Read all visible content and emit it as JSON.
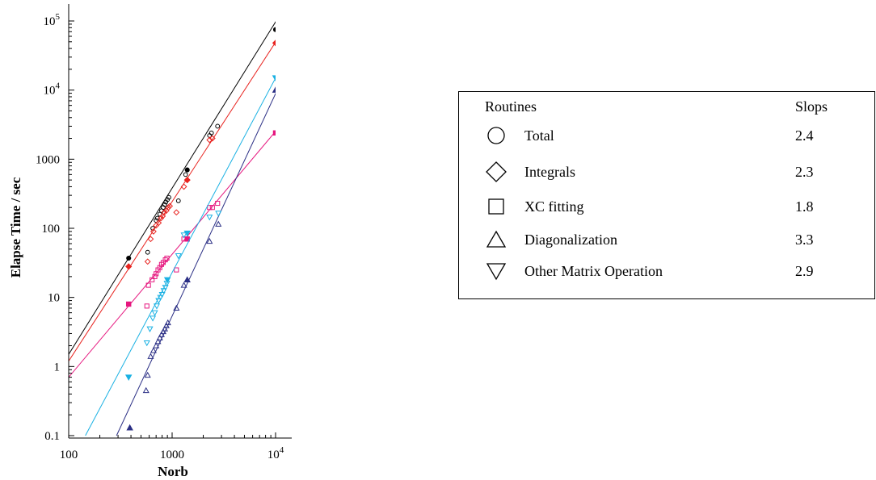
{
  "chart_data": {
    "type": "scatter",
    "xlabel": "Norb",
    "ylabel": "Elapse Time / sec",
    "xscale": "log",
    "yscale": "log",
    "xlim": [
      100,
      14000
    ],
    "ylim": [
      0.1,
      200000
    ],
    "x_ticks": [
      {
        "value": 100,
        "label": "100",
        "sup": ""
      },
      {
        "value": 1000,
        "label": "1000",
        "sup": ""
      },
      {
        "value": 10000,
        "label": "10",
        "sup": "4"
      }
    ],
    "y_ticks": [
      {
        "value": 0.1,
        "label": "0.1",
        "sup": ""
      },
      {
        "value": 1,
        "label": "1",
        "sup": ""
      },
      {
        "value": 10,
        "label": "10",
        "sup": ""
      },
      {
        "value": 100,
        "label": "100",
        "sup": ""
      },
      {
        "value": 1000,
        "label": "1000",
        "sup": ""
      },
      {
        "value": 10000,
        "label": "10",
        "sup": "4"
      },
      {
        "value": 100000,
        "label": "10",
        "sup": "5"
      }
    ],
    "legend_position": "right",
    "legend": {
      "header_routines": "Routines",
      "header_slopes": "Slops",
      "entries": [
        {
          "marker": "circle",
          "label": "Total",
          "slope": "2.4"
        },
        {
          "marker": "diamond",
          "label": "Integrals",
          "slope": "2.3"
        },
        {
          "marker": "square",
          "label": "XC fitting",
          "slope": "1.8"
        },
        {
          "marker": "triangle-up",
          "label": "Diagonalization",
          "slope": "3.3"
        },
        {
          "marker": "triangle-down",
          "label": "Other Matrix Operation",
          "slope": "2.9"
        }
      ]
    },
    "series": [
      {
        "marker": "circle",
        "color": "#000000",
        "fit": {
          "x": [
            100,
            12000
          ],
          "y": [
            1.5,
            150000
          ]
        },
        "open": {
          "x": [
            580,
            650,
            700,
            720,
            760,
            790,
            820,
            850,
            870,
            900,
            930,
            1150,
            1350,
            2300,
            2400,
            2750
          ],
          "y": [
            45,
            100,
            130,
            140,
            160,
            180,
            200,
            220,
            240,
            260,
            280,
            250,
            600,
            2200,
            2400,
            3000
          ]
        },
        "filled": {
          "x": [
            380,
            1400,
            10000
          ],
          "y": [
            37,
            700,
            75000
          ]
        }
      },
      {
        "marker": "diamond",
        "color": "#e8231f",
        "fit": {
          "x": [
            100,
            12000
          ],
          "y": [
            1.2,
            75000
          ]
        },
        "open": {
          "x": [
            580,
            620,
            660,
            700,
            740,
            780,
            810,
            840,
            880,
            920,
            950,
            1100,
            1300,
            2300,
            2450
          ],
          "y": [
            33,
            70,
            90,
            110,
            120,
            140,
            150,
            170,
            180,
            200,
            210,
            170,
            400,
            1900,
            2000
          ]
        },
        "filled": {
          "x": [
            380,
            1400,
            10000
          ],
          "y": [
            28,
            500,
            48000
          ]
        }
      },
      {
        "marker": "square",
        "color": "#e6177f",
        "fit": {
          "x": [
            100,
            12000
          ],
          "y": [
            0.7,
            3500
          ]
        },
        "open": {
          "x": [
            570,
            590,
            640,
            680,
            700,
            730,
            760,
            790,
            820,
            860,
            890,
            1100,
            1300,
            2300,
            2450,
            2750
          ],
          "y": [
            7.5,
            15,
            18,
            20,
            22,
            25,
            27,
            30,
            32,
            35,
            37,
            25,
            70,
            200,
            200,
            230
          ]
        },
        "filled": {
          "x": [
            380,
            1400,
            10000
          ],
          "y": [
            8,
            70,
            2400
          ]
        }
      },
      {
        "marker": "triangle-up",
        "color": "#2b2f85",
        "fit": {
          "x": [
            290,
            12000
          ],
          "y": [
            0.1,
            16000
          ]
        },
        "open": {
          "x": [
            560,
            580,
            620,
            660,
            700,
            730,
            760,
            790,
            820,
            850,
            880,
            910,
            1100,
            1300,
            2300,
            2800
          ],
          "y": [
            0.45,
            0.75,
            1.4,
            1.7,
            2.0,
            2.3,
            2.6,
            2.9,
            3.2,
            3.5,
            3.9,
            4.3,
            7.0,
            15,
            65,
            115
          ]
        },
        "filled": {
          "x": [
            390,
            1400,
            10000
          ],
          "y": [
            0.13,
            18,
            10000
          ]
        }
      },
      {
        "marker": "triangle-down",
        "color": "#1ab1e3",
        "fit": {
          "x": [
            145,
            12000
          ],
          "y": [
            0.1,
            25000
          ]
        },
        "open": {
          "x": [
            570,
            610,
            650,
            680,
            710,
            740,
            770,
            800,
            830,
            860,
            890,
            1150,
            1300,
            2300,
            2800
          ],
          "y": [
            2.2,
            3.5,
            5,
            6,
            7.5,
            9,
            10,
            11,
            12.5,
            14,
            16,
            40,
            80,
            145,
            165
          ]
        },
        "filled": {
          "x": [
            380,
            900,
            1400,
            10000
          ],
          "y": [
            0.7,
            18,
            85,
            15000
          ]
        }
      }
    ]
  }
}
